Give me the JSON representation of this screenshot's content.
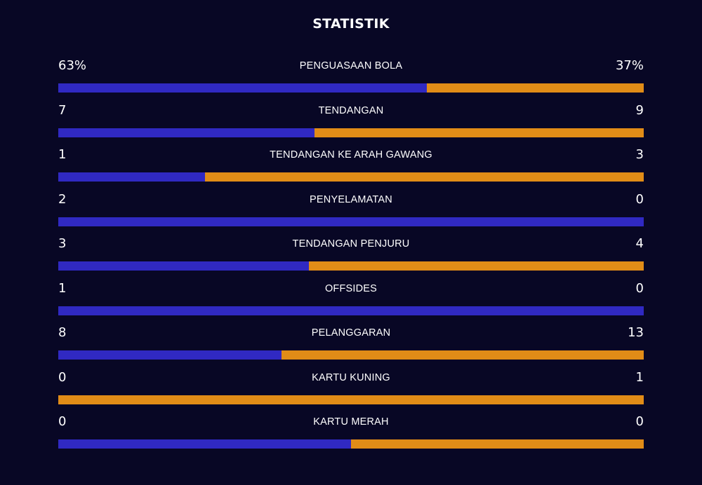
{
  "title": "STATISTIK",
  "colors": {
    "background": "#080725",
    "home": "#3029c2",
    "away": "#e18c17"
  },
  "stats": [
    {
      "label": "PENGUASAAN BOLA",
      "home": "63%",
      "away": "37%",
      "home_share": 0.63
    },
    {
      "label": "TENDANGAN",
      "home": "7",
      "away": "9",
      "home_share": 0.4375
    },
    {
      "label": "TENDANGAN KE ARAH GAWANG",
      "home": "1",
      "away": "3",
      "home_share": 0.25
    },
    {
      "label": "PENYELAMATAN",
      "home": "2",
      "away": "0",
      "home_share": 1
    },
    {
      "label": "TENDANGAN PENJURU",
      "home": "3",
      "away": "4",
      "home_share": 0.4286
    },
    {
      "label": "OFFSIDES",
      "home": "1",
      "away": "0",
      "home_share": 1
    },
    {
      "label": "PELANGGARAN",
      "home": "8",
      "away": "13",
      "home_share": 0.381
    },
    {
      "label": "KARTU KUNING",
      "home": "0",
      "away": "1",
      "home_share": 0
    },
    {
      "label": "KARTU MERAH",
      "home": "0",
      "away": "0",
      "home_share": 0.5
    }
  ]
}
